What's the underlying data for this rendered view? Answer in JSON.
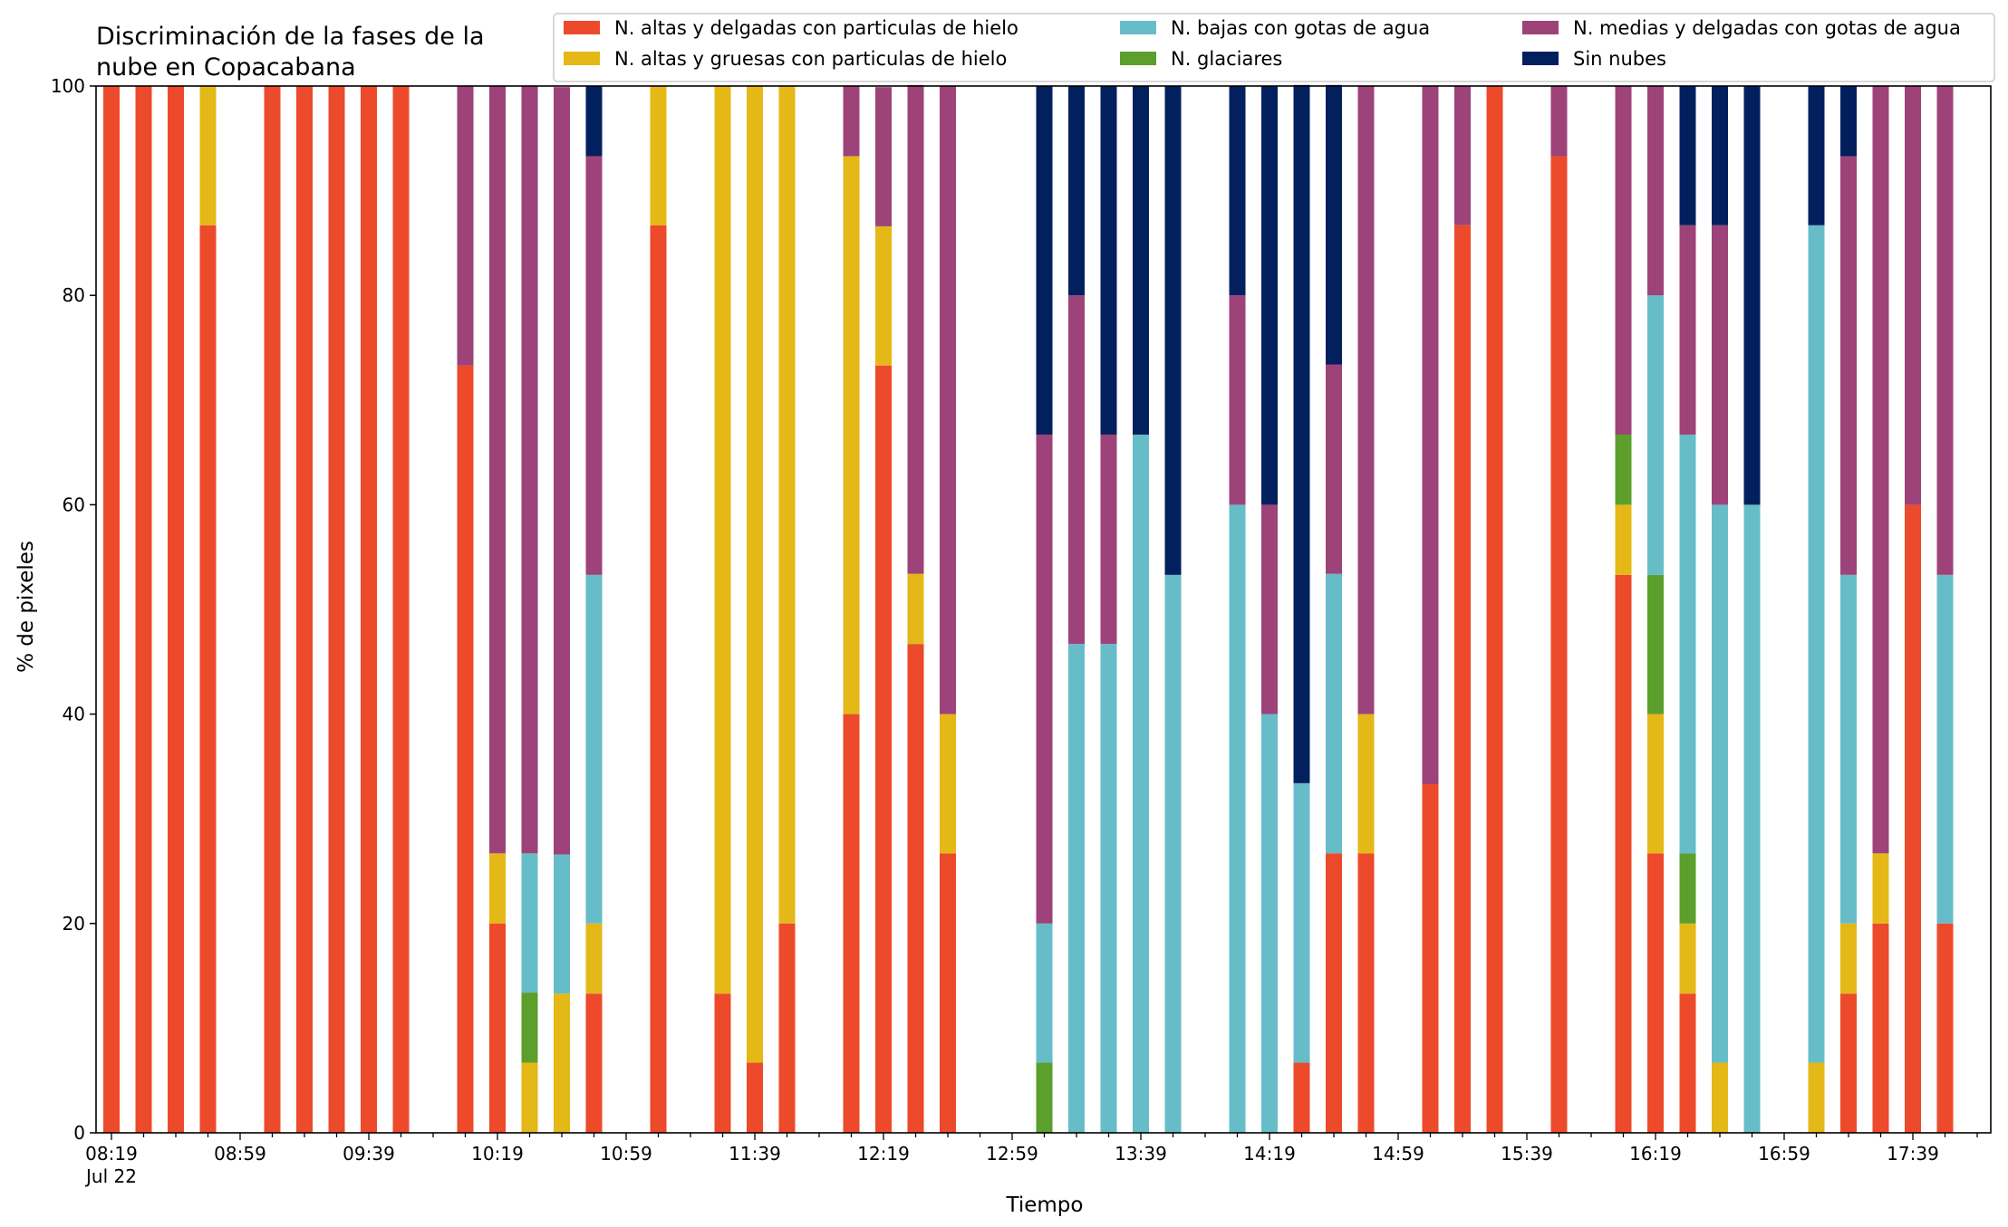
{
  "chart_data": {
    "type": "bar",
    "stacked": true,
    "title_lines": [
      "Discriminación de la fases de la",
      "nube en Copacabana"
    ],
    "xlabel": "Tiempo",
    "ylabel": "% de pixeles",
    "ylim": [
      0,
      100
    ],
    "yticks": [
      0,
      20,
      40,
      60,
      80,
      100
    ],
    "grid": false,
    "legend_position": "top-right",
    "slot_minutes": 10,
    "first_slot_time": "08:19",
    "x_tick_labels": [
      {
        "slot": 0,
        "text": "08:19",
        "sub": "Jul 22"
      },
      {
        "slot": 4,
        "text": "08:59"
      },
      {
        "slot": 8,
        "text": "09:39"
      },
      {
        "slot": 12,
        "text": "10:19"
      },
      {
        "slot": 16,
        "text": "10:59"
      },
      {
        "slot": 20,
        "text": "11:39"
      },
      {
        "slot": 24,
        "text": "12:19"
      },
      {
        "slot": 28,
        "text": "12:59"
      },
      {
        "slot": 32,
        "text": "13:39"
      },
      {
        "slot": 36,
        "text": "14:19"
      },
      {
        "slot": 40,
        "text": "14:59"
      },
      {
        "slot": 44,
        "text": "15:39"
      },
      {
        "slot": 48,
        "text": "16:19"
      },
      {
        "slot": 52,
        "text": "16:59"
      },
      {
        "slot": 56,
        "text": "17:39"
      }
    ],
    "series": [
      {
        "key": "ah",
        "name": "N. altas y delgadas con particulas de hielo",
        "color": "#ec4a2b"
      },
      {
        "key": "ag",
        "name": "N. altas y gruesas con particulas de hielo",
        "color": "#e4b816"
      },
      {
        "key": "gl",
        "name": "N. glaciares",
        "color": "#5c9f2c"
      },
      {
        "key": "bj",
        "name": "N. bajas con gotas de agua",
        "color": "#66bdc8"
      },
      {
        "key": "md",
        "name": "N. medias y delgadas con gotas de agua",
        "color": "#9e427a"
      },
      {
        "key": "sn",
        "name": "Sin nubes",
        "color": "#03205e"
      }
    ],
    "legend_order": [
      "ah",
      "ag",
      "bj",
      "gl",
      "md",
      "sn"
    ],
    "bars": [
      {
        "slot": 0,
        "ah": 100,
        "ag": 0,
        "gl": 0,
        "bj": 0,
        "md": 0,
        "sn": 0
      },
      {
        "slot": 1,
        "ah": 100,
        "ag": 0,
        "gl": 0,
        "bj": 0,
        "md": 0,
        "sn": 0
      },
      {
        "slot": 2,
        "ah": 100,
        "ag": 0,
        "gl": 0,
        "bj": 0,
        "md": 0,
        "sn": 0
      },
      {
        "slot": 3,
        "ah": 86.7,
        "ag": 13.3,
        "gl": 0,
        "bj": 0,
        "md": 0,
        "sn": 0
      },
      {
        "slot": 5,
        "ah": 100,
        "ag": 0,
        "gl": 0,
        "bj": 0,
        "md": 0,
        "sn": 0
      },
      {
        "slot": 6,
        "ah": 100,
        "ag": 0,
        "gl": 0,
        "bj": 0,
        "md": 0,
        "sn": 0
      },
      {
        "slot": 7,
        "ah": 100,
        "ag": 0,
        "gl": 0,
        "bj": 0,
        "md": 0,
        "sn": 0
      },
      {
        "slot": 8,
        "ah": 100,
        "ag": 0,
        "gl": 0,
        "bj": 0,
        "md": 0,
        "sn": 0
      },
      {
        "slot": 9,
        "ah": 100,
        "ag": 0,
        "gl": 0,
        "bj": 0,
        "md": 0,
        "sn": 0
      },
      {
        "slot": 11,
        "ah": 73.3,
        "ag": 0,
        "gl": 0,
        "bj": 0,
        "md": 26.7,
        "sn": 0
      },
      {
        "slot": 12,
        "ah": 20,
        "ag": 6.7,
        "gl": 0,
        "bj": 0,
        "md": 73.3,
        "sn": 0
      },
      {
        "slot": 13,
        "ah": 0,
        "ag": 6.7,
        "gl": 6.7,
        "bj": 13.3,
        "md": 73.3,
        "sn": 0
      },
      {
        "slot": 14,
        "ah": 0,
        "ag": 13.3,
        "gl": 0,
        "bj": 13.3,
        "md": 73.3,
        "sn": 0
      },
      {
        "slot": 15,
        "ah": 13.3,
        "ag": 6.7,
        "gl": 0,
        "bj": 33.3,
        "md": 40,
        "sn": 6.7
      },
      {
        "slot": 17,
        "ah": 86.7,
        "ag": 13.3,
        "gl": 0,
        "bj": 0,
        "md": 0,
        "sn": 0
      },
      {
        "slot": 19,
        "ah": 13.3,
        "ag": 86.7,
        "gl": 0,
        "bj": 0,
        "md": 0,
        "sn": 0
      },
      {
        "slot": 20,
        "ah": 6.7,
        "ag": 93.3,
        "gl": 0,
        "bj": 0,
        "md": 0,
        "sn": 0
      },
      {
        "slot": 21,
        "ah": 20,
        "ag": 80,
        "gl": 0,
        "bj": 0,
        "md": 0,
        "sn": 0
      },
      {
        "slot": 23,
        "ah": 40,
        "ag": 53.3,
        "gl": 0,
        "bj": 0,
        "md": 6.7,
        "sn": 0
      },
      {
        "slot": 24,
        "ah": 73.3,
        "ag": 13.3,
        "gl": 0,
        "bj": 0,
        "md": 13.3,
        "sn": 0
      },
      {
        "slot": 25,
        "ah": 46.7,
        "ag": 6.7,
        "gl": 0,
        "bj": 0,
        "md": 46.7,
        "sn": 0
      },
      {
        "slot": 26,
        "ah": 26.7,
        "ag": 13.3,
        "gl": 0,
        "bj": 0,
        "md": 60,
        "sn": 0
      },
      {
        "slot": 29,
        "ah": 0,
        "ag": 0,
        "gl": 6.7,
        "bj": 13.3,
        "md": 46.7,
        "sn": 33.3
      },
      {
        "slot": 30,
        "ah": 0,
        "ag": 0,
        "gl": 0,
        "bj": 46.7,
        "md": 33.3,
        "sn": 20
      },
      {
        "slot": 31,
        "ah": 0,
        "ag": 0,
        "gl": 0,
        "bj": 46.7,
        "md": 20,
        "sn": 33.3
      },
      {
        "slot": 32,
        "ah": 0,
        "ag": 0,
        "gl": 0,
        "bj": 66.7,
        "md": 0,
        "sn": 33.3
      },
      {
        "slot": 33,
        "ah": 0,
        "ag": 0,
        "gl": 0,
        "bj": 53.3,
        "md": 0,
        "sn": 46.7
      },
      {
        "slot": 35,
        "ah": 0,
        "ag": 0,
        "gl": 0,
        "bj": 60,
        "md": 20,
        "sn": 20
      },
      {
        "slot": 36,
        "ah": 0,
        "ag": 0,
        "gl": 0,
        "bj": 40,
        "md": 20,
        "sn": 40
      },
      {
        "slot": 37,
        "ah": 6.7,
        "ag": 0,
        "gl": 0,
        "bj": 26.7,
        "md": 0,
        "sn": 66.7
      },
      {
        "slot": 38,
        "ah": 26.7,
        "ag": 0,
        "gl": 0,
        "bj": 26.7,
        "md": 20,
        "sn": 26.7
      },
      {
        "slot": 39,
        "ah": 26.7,
        "ag": 13.3,
        "gl": 0,
        "bj": 0,
        "md": 60,
        "sn": 0
      },
      {
        "slot": 41,
        "ah": 33.3,
        "ag": 0,
        "gl": 0,
        "bj": 0,
        "md": 66.7,
        "sn": 0
      },
      {
        "slot": 42,
        "ah": 86.7,
        "ag": 0,
        "gl": 0,
        "bj": 0,
        "md": 13.3,
        "sn": 0
      },
      {
        "slot": 43,
        "ah": 100,
        "ag": 0,
        "gl": 0,
        "bj": 0,
        "md": 0,
        "sn": 0
      },
      {
        "slot": 45,
        "ah": 93.3,
        "ag": 0,
        "gl": 0,
        "bj": 0,
        "md": 6.7,
        "sn": 0
      },
      {
        "slot": 47,
        "ah": 53.3,
        "ag": 6.7,
        "gl": 6.7,
        "bj": 0,
        "md": 33.3,
        "sn": 0
      },
      {
        "slot": 48,
        "ah": 26.7,
        "ag": 13.3,
        "gl": 13.3,
        "bj": 26.7,
        "md": 20,
        "sn": 0
      },
      {
        "slot": 49,
        "ah": 13.3,
        "ag": 6.7,
        "gl": 6.7,
        "bj": 40,
        "md": 20,
        "sn": 13.3
      },
      {
        "slot": 50,
        "ah": 0,
        "ag": 6.7,
        "gl": 0,
        "bj": 53.3,
        "md": 26.7,
        "sn": 13.3
      },
      {
        "slot": 51,
        "ah": 0,
        "ag": 0,
        "gl": 0,
        "bj": 60,
        "md": 0,
        "sn": 40
      },
      {
        "slot": 53,
        "ah": 0,
        "ag": 6.7,
        "gl": 0,
        "bj": 80,
        "md": 0,
        "sn": 13.3
      },
      {
        "slot": 54,
        "ah": 13.3,
        "ag": 6.7,
        "gl": 0,
        "bj": 33.3,
        "md": 40,
        "sn": 6.7
      },
      {
        "slot": 55,
        "ah": 20,
        "ag": 6.7,
        "gl": 0,
        "bj": 0,
        "md": 73.3,
        "sn": 0
      },
      {
        "slot": 56,
        "ah": 60,
        "ag": 0,
        "gl": 0,
        "bj": 0,
        "md": 40,
        "sn": 0
      },
      {
        "slot": 57,
        "ah": 20,
        "ag": 0,
        "gl": 0,
        "bj": 33.3,
        "md": 46.7,
        "sn": 0
      }
    ]
  }
}
